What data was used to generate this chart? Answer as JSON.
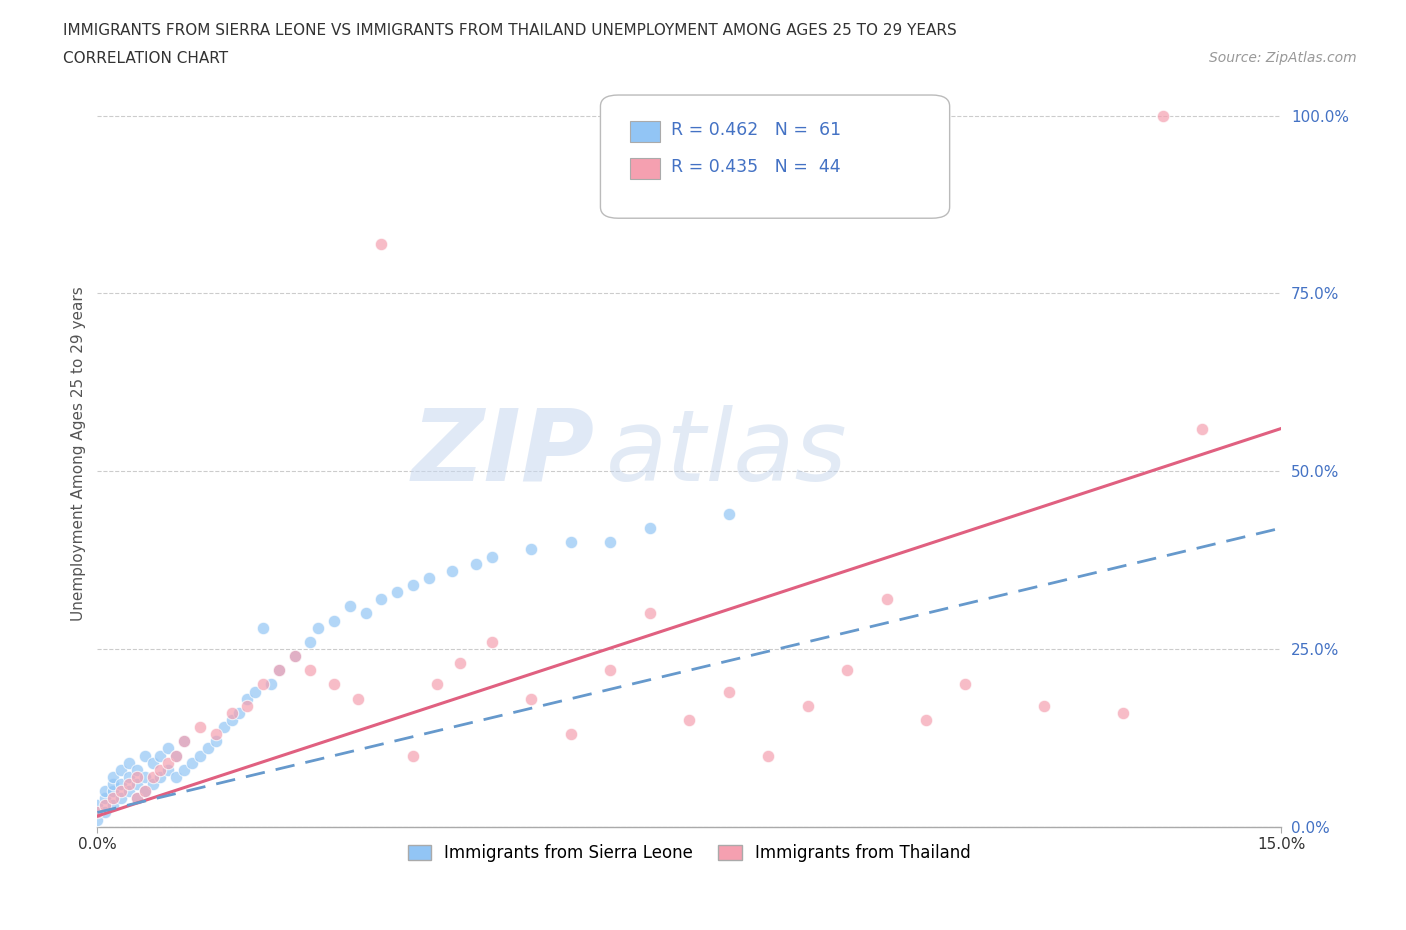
{
  "title_line1": "IMMIGRANTS FROM SIERRA LEONE VS IMMIGRANTS FROM THAILAND UNEMPLOYMENT AMONG AGES 25 TO 29 YEARS",
  "title_line2": "CORRELATION CHART",
  "source_text": "Source: ZipAtlas.com",
  "ylabel": "Unemployment Among Ages 25 to 29 years",
  "xlim": [
    0.0,
    0.15
  ],
  "ylim": [
    0.0,
    1.05
  ],
  "ytick_values": [
    0.0,
    0.25,
    0.5,
    0.75,
    1.0
  ],
  "ytick_labels": [
    "0.0%",
    "25.0%",
    "50.0%",
    "75.0%",
    "100.0%"
  ],
  "xtick_positions": [
    0.0,
    0.15
  ],
  "xtick_labels": [
    "0.0%",
    "15.0%"
  ],
  "grid_color": "#cccccc",
  "background_color": "#ffffff",
  "watermark_text1": "ZIP",
  "watermark_text2": "atlas",
  "watermark_color1": "#c8d8f0",
  "watermark_color2": "#b8cce8",
  "sierra_leone_color": "#92c5f5",
  "thailand_color": "#f5a0b0",
  "sierra_leone_line_color": "#6699cc",
  "thailand_line_color": "#e06080",
  "sierra_leone_R": "0.462",
  "sierra_leone_N": "61",
  "thailand_R": "0.435",
  "thailand_N": "44",
  "legend_label_sierra": "Immigrants from Sierra Leone",
  "legend_label_thailand": "Immigrants from Thailand",
  "stat_color": "#4472c4",
  "sl_trend_x0": 0.0,
  "sl_trend_y0": 0.02,
  "sl_trend_x1": 0.15,
  "sl_trend_y1": 0.42,
  "th_trend_x0": 0.0,
  "th_trend_y0": 0.015,
  "th_trend_x1": 0.15,
  "th_trend_y1": 0.56
}
